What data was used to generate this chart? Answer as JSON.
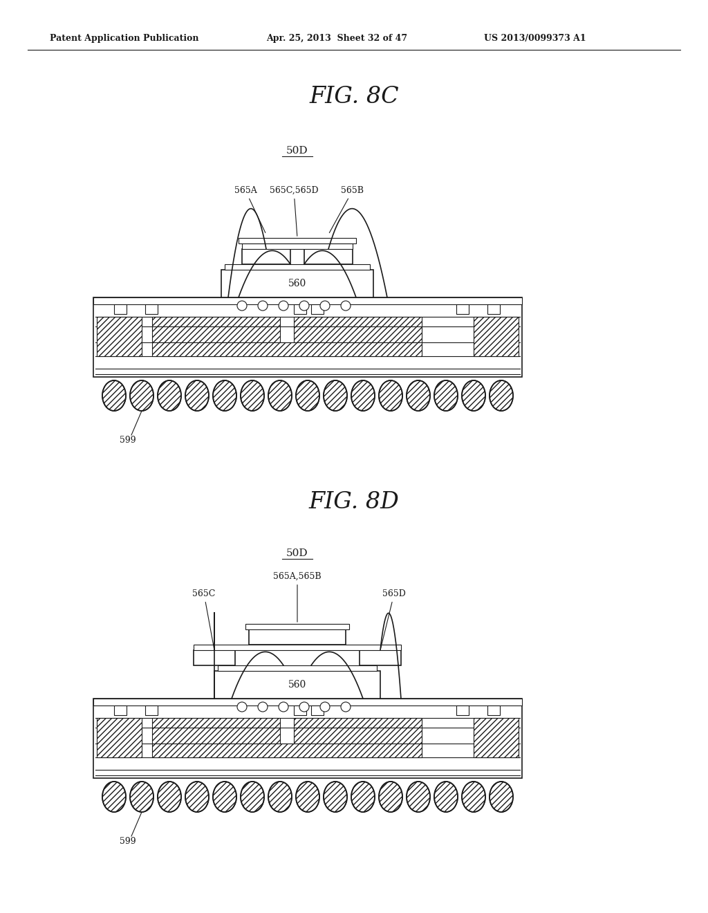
{
  "bg_color": "#ffffff",
  "line_color": "#1a1a1a",
  "header_left": "Patent Application Publication",
  "header_mid": "Apr. 25, 2013  Sheet 32 of 47",
  "header_right": "US 2013/0099373 A1",
  "fig8c_title": "FIG. 8C",
  "fig8d_title": "FIG. 8D",
  "label_50D": "50D",
  "label_560": "560",
  "label_565A_8c": "565A",
  "label_565CD_8c": "565C,565D",
  "label_565B_8c": "565B",
  "label_599_8c": "599",
  "label_565AB_8d": "565A,565B",
  "label_565C_8d": "565C",
  "label_565D_8d": "565D",
  "label_560_8d": "560",
  "label_599_8d": "599"
}
